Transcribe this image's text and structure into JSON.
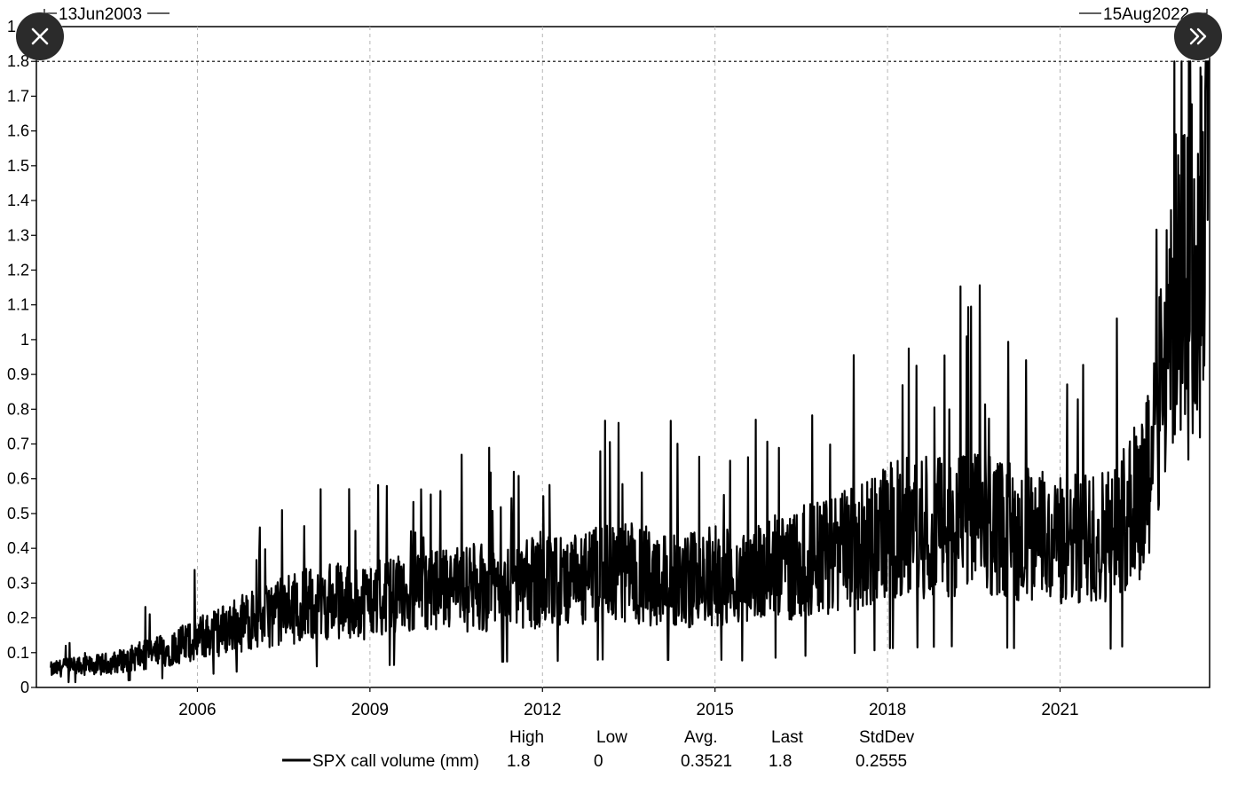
{
  "controls": {
    "close_icon": "close-icon",
    "next_icon": "double-chevron-right-icon"
  },
  "chart_data": {
    "type": "line",
    "x_range_labels": {
      "start": "13Jun2003",
      "end": "15Aug2022"
    },
    "x_ticks": [
      "2006",
      "2009",
      "2012",
      "2015",
      "2018",
      "2021"
    ],
    "ylim": [
      0,
      1.9
    ],
    "y_ticks": [
      "0",
      "0.1",
      "0.2",
      "0.3",
      "0.4",
      "0.5",
      "0.6",
      "0.7",
      "0.8",
      "0.9",
      "1",
      "1.1",
      "1.2",
      "1.3",
      "1.4",
      "1.5",
      "1.6",
      "1.7",
      "1.8",
      "1.9"
    ],
    "reference_line": {
      "y": 1.8,
      "style": "dotted"
    },
    "grid": {
      "x": true,
      "y": false
    },
    "series": [
      {
        "name": "SPX call volume (mm)",
        "color": "#000000",
        "x": [
          2003.45,
          2003.75,
          2004.0,
          2004.5,
          2005.0,
          2005.5,
          2006.0,
          2006.5,
          2007.0,
          2007.5,
          2008.0,
          2008.5,
          2009.0,
          2009.5,
          2010.0,
          2010.5,
          2011.0,
          2011.5,
          2012.0,
          2012.5,
          2013.0,
          2013.5,
          2014.0,
          2014.5,
          2015.0,
          2015.5,
          2016.0,
          2016.5,
          2017.0,
          2017.5,
          2018.0,
          2018.5,
          2019.0,
          2019.5,
          2020.0,
          2020.5,
          2021.0,
          2021.5,
          2022.0,
          2022.2,
          2022.4,
          2022.6,
          2022.8,
          2023.0,
          2023.2,
          2023.4,
          2023.6
        ],
        "y": [
          0.05,
          0.06,
          0.06,
          0.07,
          0.09,
          0.11,
          0.14,
          0.17,
          0.2,
          0.22,
          0.24,
          0.25,
          0.25,
          0.26,
          0.27,
          0.28,
          0.29,
          0.3,
          0.31,
          0.3,
          0.32,
          0.33,
          0.32,
          0.31,
          0.32,
          0.31,
          0.34,
          0.36,
          0.38,
          0.4,
          0.45,
          0.46,
          0.47,
          0.48,
          0.46,
          0.44,
          0.42,
          0.43,
          0.45,
          0.5,
          0.55,
          0.7,
          0.85,
          1.1,
          1.15,
          1.2,
          1.8
        ]
      }
    ],
    "stats": {
      "headers": [
        "High",
        "Low",
        "Avg.",
        "Last",
        "StdDev"
      ],
      "values": [
        "1.8",
        "0",
        "0.3521",
        "1.8",
        "0.2555"
      ]
    }
  }
}
